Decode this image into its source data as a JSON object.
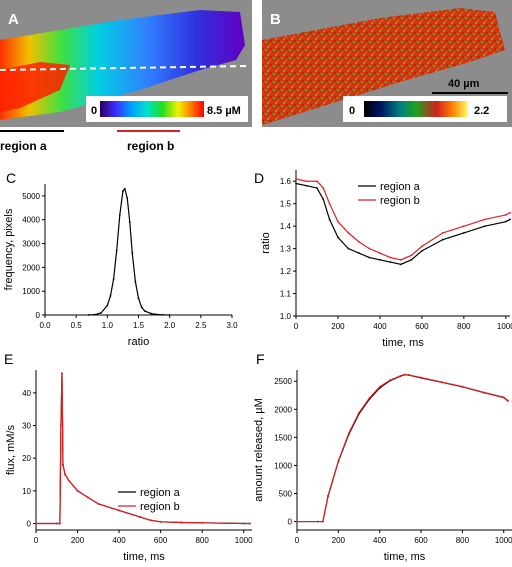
{
  "panels": {
    "A": {
      "label": "A",
      "scalebar": {
        "min": "0",
        "max": "8.5 µM"
      },
      "region_a_label": "region a",
      "region_b_label": "region b"
    },
    "B": {
      "label": "B",
      "scalebar": {
        "min": "0",
        "max": "2.2"
      },
      "length_label": "40 µm"
    }
  },
  "colors": {
    "series_a": "#000000",
    "series_b": "#e02020",
    "image_bg": "#8c8c8c"
  },
  "chart_data": [
    {
      "id": "C",
      "panel_label": "C",
      "type": "line",
      "xlabel": "ratio",
      "ylabel": "frequency, pixels",
      "xlim": [
        0,
        3
      ],
      "ylim": [
        0,
        5500
      ],
      "xticks": [
        "0.0",
        "0.5",
        "1.0",
        "1.5",
        "2.0",
        "2.5",
        "3.0"
      ],
      "xtick_values": [
        0,
        0.5,
        1,
        1.5,
        2,
        2.5,
        3
      ],
      "yticks": [
        "0",
        "1000",
        "2000",
        "3000",
        "4000",
        "5000"
      ],
      "ytick_values": [
        0,
        1000,
        2000,
        3000,
        4000,
        5000
      ],
      "series": [
        {
          "x": [
            0.7,
            0.8,
            0.9,
            1.0,
            1.05,
            1.1,
            1.15,
            1.2,
            1.25,
            1.28,
            1.32,
            1.36,
            1.4,
            1.45,
            1.5,
            1.55,
            1.6,
            1.7,
            1.8,
            1.9,
            2.0
          ],
          "values": [
            0,
            15,
            90,
            400,
            800,
            1500,
            2700,
            4200,
            5200,
            5300,
            4900,
            3900,
            2600,
            1400,
            700,
            330,
            170,
            60,
            20,
            5,
            0
          ]
        }
      ]
    },
    {
      "id": "D",
      "panel_label": "D",
      "type": "line",
      "xlabel": "time, ms",
      "ylabel": "ratio",
      "xlim": [
        0,
        1020
      ],
      "ylim": [
        1.0,
        1.65
      ],
      "xticks": [
        "0",
        "200",
        "400",
        "600",
        "800",
        "1000"
      ],
      "xtick_values": [
        0,
        200,
        400,
        600,
        800,
        1000
      ],
      "yticks": [
        "1.0",
        "1.1",
        "1.2",
        "1.3",
        "1.4",
        "1.5",
        "1.6"
      ],
      "ytick_values": [
        1.0,
        1.1,
        1.2,
        1.3,
        1.4,
        1.5,
        1.6
      ],
      "legend": "top-right",
      "series": [
        {
          "name": "region a",
          "x": [
            0,
            50,
            100,
            130,
            160,
            200,
            250,
            300,
            350,
            400,
            450,
            500,
            550,
            600,
            700,
            800,
            900,
            1000,
            1020
          ],
          "values": [
            1.59,
            1.58,
            1.57,
            1.52,
            1.43,
            1.35,
            1.3,
            1.28,
            1.26,
            1.25,
            1.24,
            1.23,
            1.25,
            1.29,
            1.34,
            1.37,
            1.4,
            1.42,
            1.43
          ]
        },
        {
          "name": "region b",
          "x": [
            0,
            50,
            100,
            130,
            160,
            200,
            250,
            300,
            350,
            400,
            450,
            500,
            550,
            600,
            700,
            800,
            900,
            1000,
            1020
          ],
          "values": [
            1.61,
            1.6,
            1.6,
            1.57,
            1.5,
            1.42,
            1.37,
            1.33,
            1.3,
            1.28,
            1.26,
            1.25,
            1.27,
            1.31,
            1.37,
            1.4,
            1.43,
            1.45,
            1.46
          ]
        }
      ]
    },
    {
      "id": "E",
      "panel_label": "E",
      "type": "line",
      "xlabel": "time, ms",
      "ylabel": "flux, mM/s",
      "xlim": [
        0,
        1040
      ],
      "ylim": [
        -2,
        47
      ],
      "xticks": [
        "0",
        "200",
        "400",
        "600",
        "800",
        "1000"
      ],
      "xtick_values": [
        0,
        200,
        400,
        600,
        800,
        1000
      ],
      "yticks": [
        "0",
        "10",
        "20",
        "30",
        "40"
      ],
      "ytick_values": [
        0,
        10,
        20,
        30,
        40
      ],
      "legend": "center-right",
      "series": [
        {
          "name": "region a",
          "x": [
            0,
            100,
            115,
            120,
            125,
            130,
            140,
            160,
            200,
            250,
            300,
            400,
            500,
            550,
            600,
            700,
            800,
            1000,
            1030
          ],
          "values": [
            0,
            0,
            0,
            30,
            46,
            18,
            15,
            13,
            10,
            8,
            6,
            4,
            2,
            1,
            0.5,
            0.3,
            0.2,
            0,
            0
          ]
        },
        {
          "name": "region b",
          "x": [
            0,
            100,
            115,
            120,
            125,
            130,
            140,
            160,
            200,
            250,
            300,
            400,
            500,
            550,
            600,
            700,
            800,
            1000,
            1030
          ],
          "values": [
            0,
            0,
            0,
            30,
            46,
            18,
            15,
            13,
            10,
            8,
            6,
            4,
            2,
            1,
            0.5,
            0.3,
            0.2,
            0,
            0
          ]
        }
      ]
    },
    {
      "id": "F",
      "panel_label": "F",
      "type": "line",
      "xlabel": "time, ms",
      "ylabel": "amount released, µM",
      "xlim": [
        0,
        1040
      ],
      "ylim": [
        -150,
        2700
      ],
      "xticks": [
        "0",
        "200",
        "400",
        "600",
        "800",
        "1000"
      ],
      "xtick_values": [
        0,
        200,
        400,
        600,
        800,
        1000
      ],
      "yticks": [
        "0",
        "500",
        "1000",
        "1500",
        "2000",
        "2500"
      ],
      "ytick_values": [
        0,
        500,
        1000,
        1500,
        2000,
        2500
      ],
      "series": [
        {
          "name": "region a",
          "x": [
            0,
            100,
            125,
            150,
            200,
            250,
            300,
            350,
            400,
            450,
            500,
            520,
            540,
            600,
            700,
            800,
            900,
            1000,
            1020
          ],
          "values": [
            0,
            0,
            0,
            450,
            1070,
            1550,
            1920,
            2180,
            2380,
            2510,
            2590,
            2615,
            2610,
            2560,
            2480,
            2400,
            2300,
            2210,
            2150
          ]
        },
        {
          "name": "region b",
          "x": [
            0,
            100,
            125,
            150,
            200,
            250,
            300,
            350,
            400,
            450,
            500,
            520,
            540,
            600,
            700,
            800,
            900,
            1000,
            1020
          ],
          "values": [
            0,
            0,
            0,
            460,
            1080,
            1570,
            1940,
            2200,
            2400,
            2520,
            2595,
            2620,
            2612,
            2565,
            2485,
            2405,
            2305,
            2215,
            2155
          ]
        }
      ]
    }
  ]
}
